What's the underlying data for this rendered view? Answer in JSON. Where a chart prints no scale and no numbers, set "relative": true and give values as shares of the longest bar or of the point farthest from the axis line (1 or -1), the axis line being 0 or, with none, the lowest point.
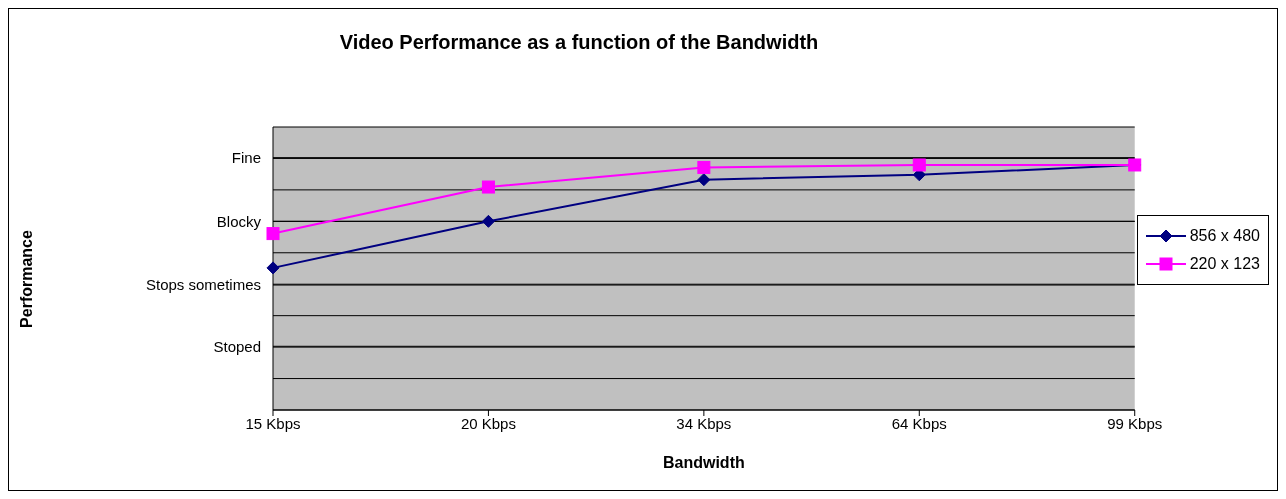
{
  "chart_data": {
    "type": "line",
    "title": "Video Performance as a function of the Bandwidth",
    "xlabel": "Bandwidth",
    "annotations": [
      "Performance"
    ],
    "relative": true,
    "categories": [
      "15 Kbps",
      "20 Kbps",
      "34 Kbps",
      "64 Kbps",
      "99 Kbps"
    ],
    "series": [
      {
        "name": "856 x 480",
        "color": "#000080",
        "marker": "diamond",
        "values": [
          0.58,
          0.77,
          0.94,
          0.96,
          1.0
        ]
      },
      {
        "name": "220 x 123",
        "color": "#ff00ff",
        "marker": "square",
        "values": [
          0.72,
          0.91,
          0.99,
          1.0,
          1.0
        ]
      }
    ],
    "ref_lines": [
      {
        "axis": "y",
        "value": 0.26,
        "label": "Stoped"
      },
      {
        "axis": "y",
        "value": 0.51,
        "label": "Stops sometimes"
      },
      {
        "axis": "y",
        "value": 0.77,
        "label": "Blocky"
      },
      {
        "axis": "y",
        "value": 1.03,
        "label": "Fine"
      }
    ],
    "grid": "y",
    "legend": "right"
  }
}
